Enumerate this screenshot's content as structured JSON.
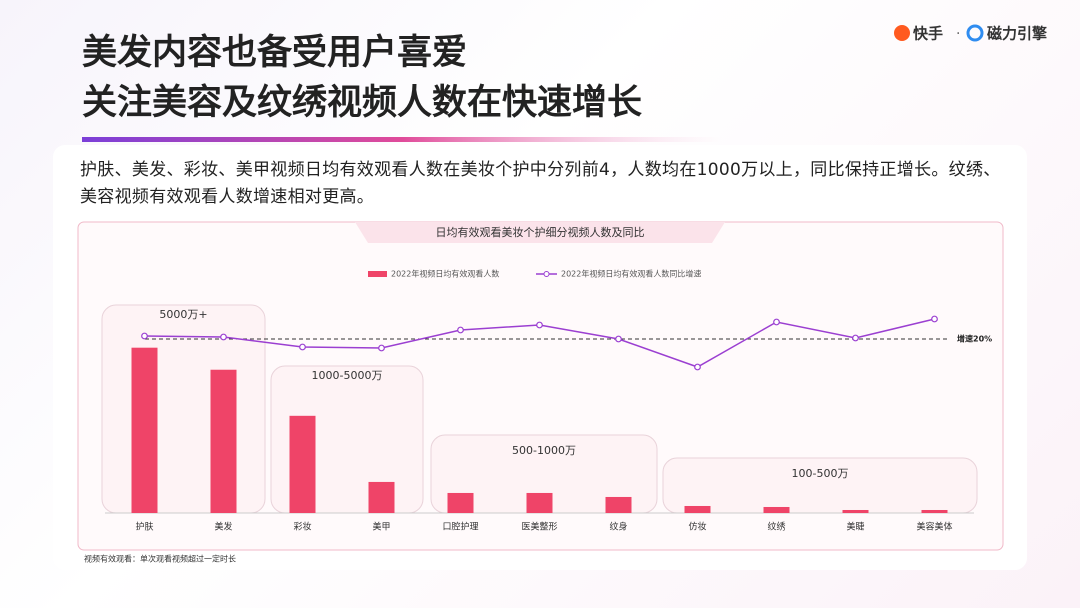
{
  "header": {
    "title_line1": "美发内容也备受用户喜爱",
    "title_line2": "关注美容及纹绣视频人数在快速增长",
    "logo_brand": "快手",
    "logo_separator": "·",
    "logo_partner": "磁力引擎"
  },
  "summary": "护肤、美发、彩妆、美甲视频日均有效观看人数在美妆个护中分列前4，人数均在1000万以上，同比保持正增长。纹绣、美容视频有效观看人数增速相对更高。",
  "chart_data": {
    "type": "bar-line",
    "title": "日均有效观看美妆个护细分视频人数及同比",
    "categories": [
      "护肤",
      "美发",
      "彩妆",
      "美甲",
      "口腔护理",
      "医美整形",
      "纹身",
      "仿妆",
      "纹绣",
      "美睫",
      "美容美体"
    ],
    "series": [
      {
        "name": "2022年视频日均有效观看人数",
        "color": "#ef4468",
        "values": [
          6600,
          5720,
          3880,
          1240,
          800,
          800,
          640,
          280,
          240,
          120,
          120
        ]
      },
      {
        "name": "2022年视频日均有效观看人数同比增速",
        "color": "#9b3fd1",
        "axis": "y2",
        "values": [
          21.5,
          21,
          16,
          15.5,
          24.5,
          27,
          20,
          6,
          28.5,
          20.5,
          30
        ]
      }
    ],
    "ylim": [
      0,
      10500
    ],
    "y2lim": [
      -67,
      64.5
    ],
    "reference_line": {
      "value": 20,
      "label": "增速20%"
    },
    "group_labels": [
      "5000万+",
      "1000-5000万",
      "500-1000万",
      "100-500万"
    ],
    "legend": "top",
    "footnote": "视频有效观看：单次观看视频超过一定时长"
  }
}
